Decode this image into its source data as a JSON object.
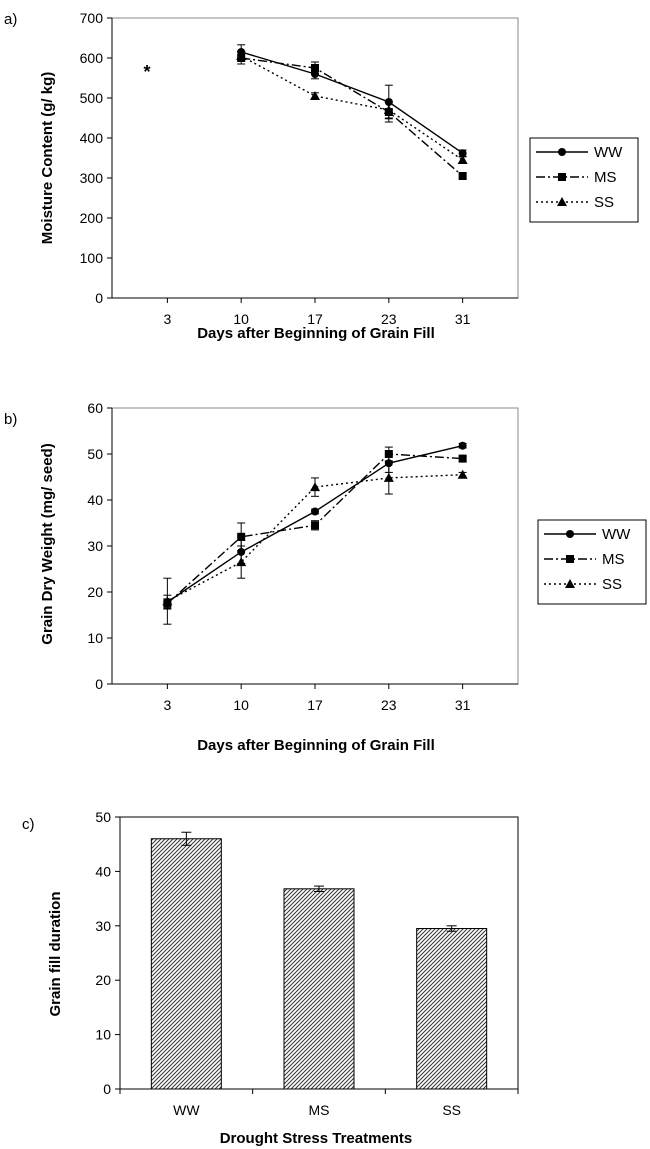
{
  "chart_data": [
    {
      "panel_label": "a)",
      "type": "line",
      "xlabel": "Days after Beginning of Grain Fill",
      "ylabel": "Moisture Content (g/ kg)",
      "categories": [
        "3",
        "10",
        "17",
        "23",
        "31"
      ],
      "ylim": [
        0,
        700
      ],
      "yticks": [
        0,
        100,
        200,
        300,
        400,
        500,
        600,
        700
      ],
      "annotation": "*",
      "legend": "right",
      "series": [
        {
          "name": "WW",
          "values": [
            null,
            615,
            560,
            490,
            362
          ],
          "errors": [
            null,
            18,
            12,
            42,
            8
          ]
        },
        {
          "name": "MS",
          "values": [
            null,
            600,
            575,
            465,
            305
          ],
          "errors": [
            null,
            15,
            15,
            25,
            6
          ]
        },
        {
          "name": "SS",
          "values": [
            null,
            605,
            505,
            470,
            345
          ],
          "errors": [
            null,
            12,
            8,
            20,
            8
          ]
        }
      ]
    },
    {
      "panel_label": "b)",
      "type": "line",
      "xlabel": "Days after Beginning of Grain Fill",
      "ylabel": "Grain Dry Weight (mg/ seed)",
      "categories": [
        "3",
        "10",
        "17",
        "23",
        "31"
      ],
      "ylim": [
        0,
        60
      ],
      "yticks": [
        0,
        10,
        20,
        30,
        40,
        50,
        60
      ],
      "legend": "right",
      "series": [
        {
          "name": "WW",
          "values": [
            17.8,
            28.7,
            37.5,
            48.0,
            51.8
          ],
          "errors": [
            1.5,
            2.5,
            0.5,
            2.0,
            0.5
          ]
        },
        {
          "name": "MS",
          "values": [
            17.5,
            32.0,
            34.5,
            50.0,
            49.0
          ],
          "errors": [
            1.0,
            3.0,
            1.0,
            1.5,
            0.5
          ]
        },
        {
          "name": "SS",
          "values": [
            18.0,
            26.5,
            42.8,
            44.8,
            45.5
          ],
          "errors": [
            5.0,
            3.5,
            2.0,
            3.5,
            0.5
          ]
        }
      ]
    },
    {
      "panel_label": "c)",
      "type": "bar",
      "xlabel": "Drought Stress Treatments",
      "ylabel": "Grain fill duration",
      "categories": [
        "WW",
        "MS",
        "SS"
      ],
      "values": [
        46.0,
        36.8,
        29.5
      ],
      "errors": [
        1.2,
        0.5,
        0.5
      ],
      "ylim": [
        0,
        50
      ],
      "yticks": [
        0,
        10,
        20,
        30,
        40,
        50
      ]
    }
  ]
}
